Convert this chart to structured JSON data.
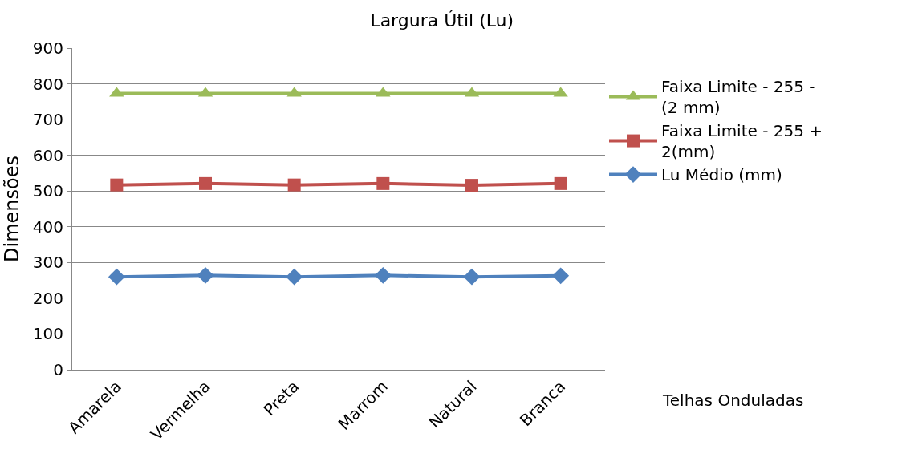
{
  "chart_data": {
    "type": "line",
    "title": "Largura Útil (Lu)",
    "xlabel": "Telhas Onduladas",
    "ylabel": "Dimensões",
    "categories": [
      "Amarela",
      "Vermelha",
      "Preta",
      "Marrom",
      "Natural",
      "Branca"
    ],
    "series": [
      {
        "name": "Lu Médio (mm)",
        "color": "#4f81bd",
        "marker": "diamond",
        "values": [
          260,
          264,
          260,
          264,
          260,
          263
        ]
      },
      {
        "name": "Faixa Limite - 255 + 2(mm)",
        "color": "#c0504d",
        "marker": "square",
        "values": [
          517,
          521,
          517,
          521,
          516,
          521
        ]
      },
      {
        "name": "Faixa Limite - 255 - (2 mm)",
        "color": "#9bbb59",
        "marker": "triangle",
        "values": [
          773,
          773,
          773,
          773,
          773,
          773
        ]
      }
    ],
    "ylim": [
      0,
      900
    ],
    "yticks": [
      0,
      100,
      200,
      300,
      400,
      500,
      600,
      700,
      800,
      900
    ],
    "grid": "y",
    "legend": "right",
    "line_style": "solid"
  }
}
